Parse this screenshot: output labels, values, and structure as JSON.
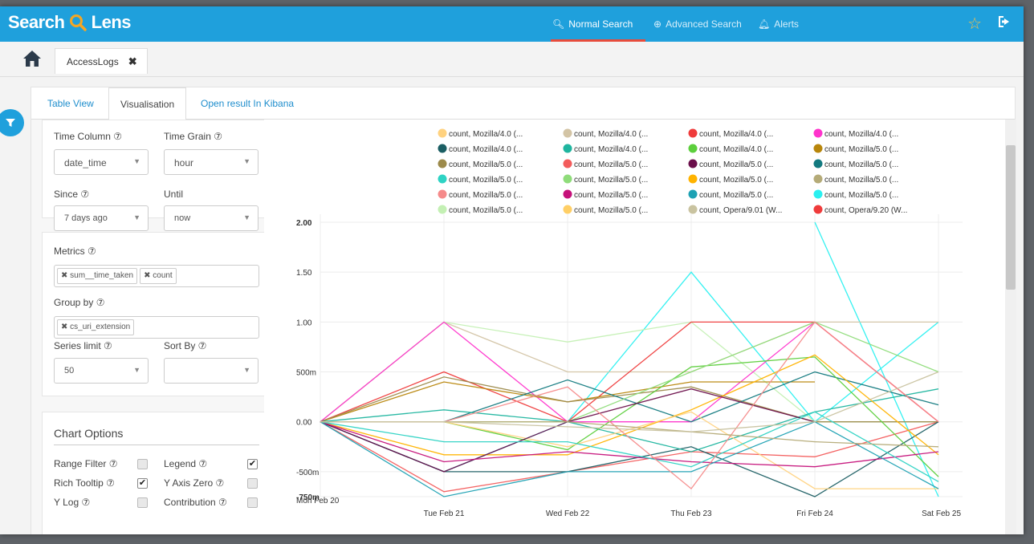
{
  "app": {
    "logo_prefix": "Search",
    "logo_icon": "Q",
    "logo_suffix": "Lens"
  },
  "nav": {
    "normal": "Normal Search",
    "advanced": "Advanced Search",
    "alerts": "Alerts"
  },
  "tab": {
    "name": "AccessLogs",
    "close": "✖"
  },
  "subtabs": {
    "table": "Table View",
    "vis": "Visualisation",
    "kibana": "Open result In Kibana"
  },
  "controls": {
    "time_column_label": "Time Column ⑦",
    "time_column_value": "date_time",
    "time_grain_label": "Time Grain ⑦",
    "time_grain_value": "hour",
    "since_label": "Since ⑦",
    "since_value": "7 days ago",
    "until_label": "Until",
    "until_value": "now",
    "metrics_label": "Metrics ⑦",
    "metric_tags": [
      "✖ sum__time_taken",
      "✖ count"
    ],
    "groupby_label": "Group by ⑦",
    "groupby_tags": [
      "✖ cs_uri_extension"
    ],
    "series_limit_label": "Series limit ⑦",
    "series_limit_value": "50",
    "sortby_label": "Sort By ⑦",
    "sortby_value": "",
    "chart_options_title": "Chart Options",
    "range_filter": "Range Filter ⑦",
    "legend": "Legend ⑦",
    "rich_tooltip": "Rich Tooltip ⑦",
    "y_axis_zero": "Y Axis Zero ⑦",
    "y_log": "Y Log ⑦",
    "contribution": "Contribution ⑦"
  },
  "checks": {
    "range_filter": false,
    "legend": true,
    "rich_tooltip": true,
    "y_axis_zero": false,
    "y_log": false,
    "contribution": false
  },
  "colors": {
    "accent": "#1fa0dc",
    "active_underline": "#e74c3c"
  },
  "chart_data": {
    "type": "line",
    "x": [
      "Mon Feb 20",
      "Tue Feb 21",
      "Wed Feb 22",
      "Thu Feb 23",
      "Fri Feb 24",
      "Sat Feb 25"
    ],
    "ylim": [
      -0.75,
      2.0
    ],
    "y_ticks": [
      "2.00",
      "1.50",
      "1.00",
      "500m",
      "0.00",
      "-500m",
      "-750m"
    ],
    "legend": [
      {
        "name": "count, Mozilla/4.0 (...",
        "color": "#ffd27f"
      },
      {
        "name": "count, Mozilla/4.0 (...",
        "color": "#d3c4a5"
      },
      {
        "name": "count, Mozilla/4.0 (...",
        "color": "#ef3b3b"
      },
      {
        "name": "count, Mozilla/4.0 (...",
        "color": "#ff33cc"
      },
      {
        "name": "count, Mozilla/4.0 (...",
        "color": "#1b5e63"
      },
      {
        "name": "count, Mozilla/4.0 (...",
        "color": "#1fb59f"
      },
      {
        "name": "count, Mozilla/4.0 (...",
        "color": "#5ccf3c"
      },
      {
        "name": "count, Mozilla/5.0 (...",
        "color": "#b8860b"
      },
      {
        "name": "count, Mozilla/5.0 (...",
        "color": "#9c8a4b"
      },
      {
        "name": "count, Mozilla/5.0 (...",
        "color": "#f35c5c"
      },
      {
        "name": "count, Mozilla/5.0 (...",
        "color": "#6b0f4b"
      },
      {
        "name": "count, Mozilla/5.0 (...",
        "color": "#137a80"
      },
      {
        "name": "count, Mozilla/5.0 (...",
        "color": "#2ed3c4"
      },
      {
        "name": "count, Mozilla/5.0 (...",
        "color": "#8fdc7a"
      },
      {
        "name": "count, Mozilla/5.0 (...",
        "color": "#ffb300"
      },
      {
        "name": "count, Mozilla/5.0 (...",
        "color": "#b5ab78"
      },
      {
        "name": "count, Mozilla/5.0 (...",
        "color": "#f58a8a"
      },
      {
        "name": "count, Mozilla/5.0 (...",
        "color": "#c5117a"
      },
      {
        "name": "count, Mozilla/5.0 (...",
        "color": "#1da1b3"
      },
      {
        "name": "count, Mozilla/5.0 (...",
        "color": "#2af0f0"
      },
      {
        "name": "count, Mozilla/5.0 (...",
        "color": "#c4f0b4"
      },
      {
        "name": "count, Mozilla/5.0 (...",
        "color": "#ffcf66"
      },
      {
        "name": "count, Opera/9.01 (W...",
        "color": "#c9c3a0"
      },
      {
        "name": "count, Opera/9.20 (W...",
        "color": "#ef3b3b"
      }
    ],
    "series": [
      {
        "color": "#2af0f0",
        "values": [
          0,
          -0.5,
          0,
          1.5,
          0,
          1.0
        ]
      },
      {
        "color": "#2af0f0",
        "values": [
          0,
          null,
          0,
          null,
          2.0,
          -0.75
        ]
      },
      {
        "color": "#d3c4a5",
        "values": [
          0,
          1.0,
          0.5,
          0.5,
          1.0,
          1.0
        ]
      },
      {
        "color": "#c4f0b4",
        "values": [
          0,
          1.0,
          0.8,
          1.0,
          0,
          0
        ]
      },
      {
        "color": "#ff33cc",
        "values": [
          0,
          1.0,
          0,
          0,
          1.0,
          0
        ]
      },
      {
        "color": "#ef3b3b",
        "values": [
          0,
          0.5,
          0,
          1.0,
          1.0,
          0
        ]
      },
      {
        "color": "#f35c5c",
        "values": [
          0,
          -0.7,
          -0.5,
          -0.3,
          -0.35,
          0
        ]
      },
      {
        "color": "#b8860b",
        "values": [
          0,
          0.4,
          0.2,
          0.4,
          0.4,
          null
        ]
      },
      {
        "color": "#9c8a4b",
        "values": [
          0,
          0.45,
          0.2,
          0.35,
          0.0,
          0.0
        ]
      },
      {
        "color": "#1b5e63",
        "values": [
          0,
          -0.5,
          -0.5,
          -0.25,
          -0.75,
          0
        ]
      },
      {
        "color": "#137a80",
        "values": [
          0,
          0,
          0.42,
          0,
          0.5,
          0.17
        ]
      },
      {
        "color": "#1fb59f",
        "values": [
          0,
          0.12,
          0,
          -0.3,
          0.1,
          0.33
        ]
      },
      {
        "color": "#5ccf3c",
        "values": [
          0,
          0,
          -0.28,
          0.55,
          0.65,
          -0.55
        ]
      },
      {
        "color": "#8fdc7a",
        "values": [
          0,
          0,
          0,
          0.5,
          1.0,
          0.5
        ]
      },
      {
        "color": "#ffb300",
        "values": [
          0,
          -0.33,
          -0.33,
          0.12,
          0.67,
          -0.33
        ]
      },
      {
        "color": "#ffd27f",
        "values": [
          0,
          0,
          -0.25,
          0.1,
          -0.67,
          -0.67
        ]
      },
      {
        "color": "#6b0f4b",
        "values": [
          0,
          -0.5,
          0,
          0.33,
          0,
          null
        ]
      },
      {
        "color": "#c5117a",
        "values": [
          0,
          -0.4,
          -0.3,
          -0.4,
          -0.45,
          -0.3
        ]
      },
      {
        "color": "#1da1b3",
        "values": [
          0,
          -0.75,
          -0.5,
          -0.5,
          0,
          -0.67
        ]
      },
      {
        "color": "#2ed3c4",
        "values": [
          0,
          -0.2,
          -0.2,
          -0.45,
          0.1,
          -0.6
        ]
      },
      {
        "color": "#f58a8a",
        "values": [
          0,
          0,
          0.35,
          -0.67,
          1.0,
          0
        ]
      },
      {
        "color": "#b5ab78",
        "values": [
          0,
          0,
          0,
          -0.1,
          -0.2,
          -0.25
        ]
      },
      {
        "color": "#c9c3a0",
        "values": [
          0,
          0,
          -0.05,
          -0.1,
          0,
          0.5
        ]
      }
    ]
  }
}
